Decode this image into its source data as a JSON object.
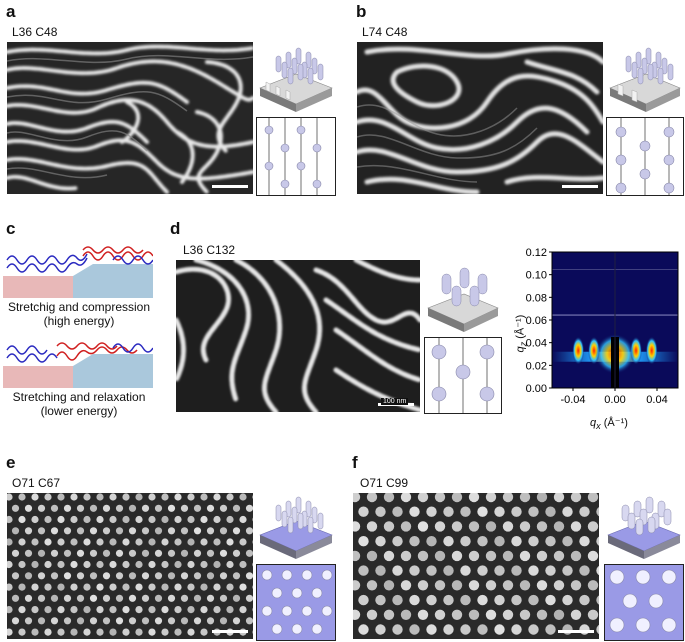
{
  "panels": {
    "a": {
      "letter": "a",
      "sample": "L36 C48"
    },
    "b": {
      "letter": "b",
      "sample": "L74 C48"
    },
    "c": {
      "letter": "c",
      "caption_top_1": "Stretchig and compression",
      "caption_top_2": "(high energy)",
      "caption_bot_1": "Stretching and relaxation",
      "caption_bot_2": "(lower energy)"
    },
    "d": {
      "letter": "d",
      "sample": "L36 C132",
      "scalebar": "100 nm"
    },
    "e": {
      "letter": "e",
      "sample": "O71 C67"
    },
    "f": {
      "letter": "f",
      "sample": "O71 C99"
    }
  },
  "chart_data": {
    "type": "heatmap",
    "xlabel": "q",
    "xlabel_sub": "x",
    "xlabel_unit": " (Å⁻¹)",
    "ylabel": "q",
    "ylabel_sub": "z",
    "ylabel_unit": " (Å⁻¹)",
    "xlim": [
      -0.06,
      0.06
    ],
    "ylim": [
      0,
      0.12
    ],
    "xticks": [
      "-0.04",
      "0.00",
      "0.04"
    ],
    "yticks": [
      "0.00",
      "0.02",
      "0.04",
      "0.06",
      "0.08",
      "0.10",
      "0.12"
    ]
  },
  "colors": {
    "gisaxs_bg": "#0a0a5a",
    "chain_blue": "#2a2ac0",
    "chain_red": "#d02020",
    "substrate": "#aac8dc",
    "cylinder": "#c8c8e8",
    "matrix_purple": "#9a9ae6"
  }
}
